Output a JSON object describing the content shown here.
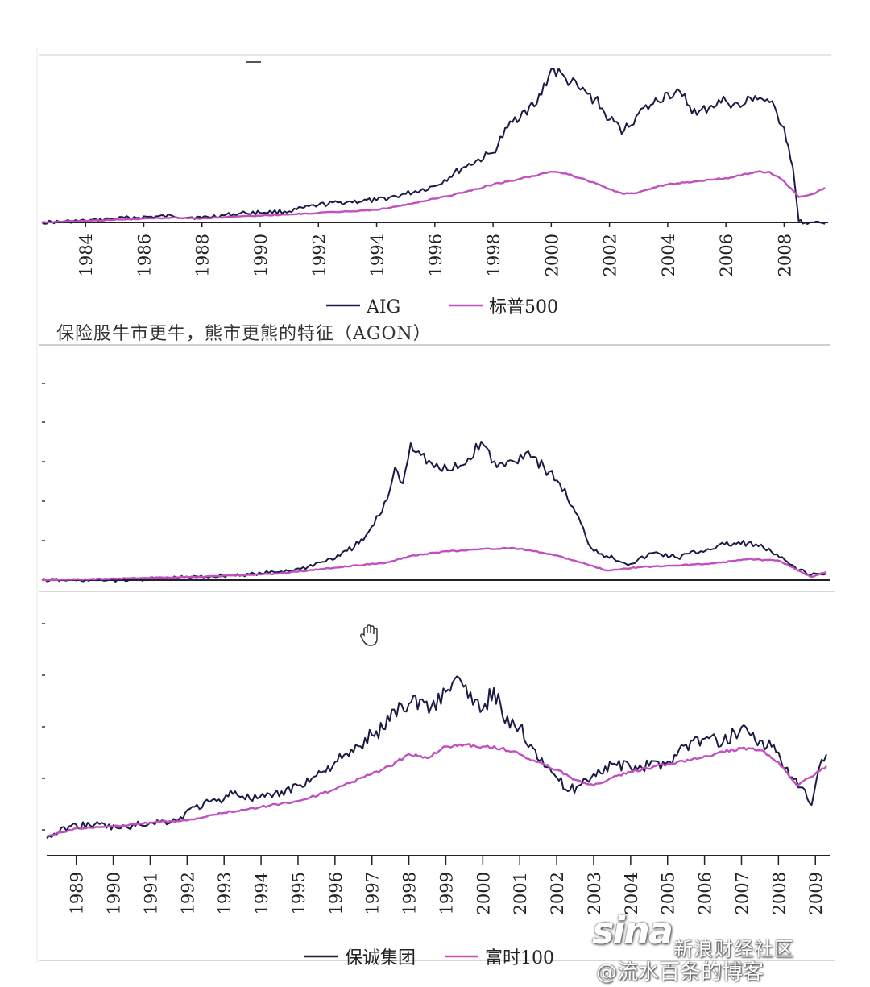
{
  "caption": "保险股牛市更牛，熊市更熊的特征（AGON）",
  "watermark": {
    "brand": "sina",
    "site": "新浪财经社区",
    "author": "@流水百条的博客"
  },
  "colors": {
    "company": "#1b1b45",
    "index": "#c050c0",
    "axis": "#222222",
    "separator": "#cfcfcf"
  },
  "chart_data": [
    {
      "type": "line",
      "title": "",
      "x_ticks": [
        "1984",
        "1986",
        "1988",
        "1990",
        "1992",
        "1994",
        "1996",
        "1998",
        "2000",
        "2002",
        "2004",
        "2006",
        "2008"
      ],
      "xlim": [
        1982.5,
        2009.4
      ],
      "ylim": [
        0,
        10
      ],
      "series": [
        {
          "name": "AIG",
          "x": [
            1982.5,
            1984,
            1985.5,
            1987,
            1988,
            1989.5,
            1991,
            1992,
            1993,
            1994,
            1995,
            1996,
            1997,
            1998,
            1998.5,
            1999,
            1999.5,
            2000,
            2000.5,
            2001,
            2001.5,
            2002,
            2002.5,
            2003,
            2003.5,
            2004,
            2004.5,
            2005,
            2005.5,
            2006,
            2006.5,
            2007,
            2007.5,
            2008,
            2008.3,
            2008.5,
            2008.8,
            2009,
            2009.4
          ],
          "y": [
            0.0,
            0.1,
            0.3,
            0.4,
            0.3,
            0.6,
            0.7,
            1.1,
            1.3,
            1.4,
            1.8,
            2.3,
            3.5,
            4.4,
            6.0,
            7.0,
            7.5,
            9.7,
            9.1,
            8.4,
            7.8,
            6.5,
            5.8,
            6.9,
            7.5,
            8.2,
            8.0,
            6.8,
            7.4,
            7.7,
            7.3,
            8.0,
            7.6,
            6.0,
            3.5,
            0.1,
            -0.1,
            0.0,
            -0.1
          ]
        },
        {
          "name": "标普500",
          "x": [
            1982.5,
            1984,
            1985.5,
            1987,
            1988,
            1989.5,
            1991,
            1992,
            1993,
            1994,
            1995,
            1996,
            1997,
            1998,
            1999,
            2000,
            2000.5,
            2001,
            2001.5,
            2002,
            2002.5,
            2003,
            2003.5,
            2004,
            2005,
            2006,
            2007,
            2007.5,
            2008,
            2008.5,
            2009,
            2009.4
          ],
          "y": [
            0.0,
            0.1,
            0.2,
            0.3,
            0.25,
            0.4,
            0.5,
            0.6,
            0.7,
            0.8,
            1.1,
            1.5,
            1.9,
            2.4,
            2.8,
            3.2,
            3.1,
            2.8,
            2.5,
            2.1,
            1.8,
            1.9,
            2.2,
            2.4,
            2.6,
            2.8,
            3.2,
            3.2,
            2.6,
            1.6,
            1.8,
            2.2
          ]
        }
      ],
      "legend": [
        "AIG",
        "标普500"
      ],
      "legend_position": "bottom"
    },
    {
      "type": "line",
      "title": "",
      "x_ticks": [],
      "xlim": [
        0,
        100
      ],
      "ylim": [
        0,
        10
      ],
      "series": [
        {
          "name": "",
          "x": [
            0,
            10,
            20,
            28,
            33,
            38,
            41,
            43,
            44,
            45,
            46,
            47,
            48,
            50,
            52,
            54,
            56,
            58,
            60,
            62,
            64,
            66,
            68,
            70,
            72,
            75,
            78,
            81,
            84,
            87,
            90,
            92,
            94,
            96,
            98,
            100
          ],
          "y": [
            0.0,
            0.0,
            0.2,
            0.4,
            0.7,
            1.5,
            2.5,
            4.0,
            5.0,
            7.0,
            6.0,
            8.5,
            8.0,
            7.0,
            6.8,
            7.2,
            8.6,
            7.0,
            7.4,
            8.0,
            7.0,
            6.0,
            4.2,
            2.0,
            1.5,
            1.0,
            1.7,
            1.4,
            1.8,
            2.2,
            2.3,
            2.0,
            1.4,
            0.8,
            0.3,
            0.4
          ]
        },
        {
          "name": "",
          "x": [
            0,
            20,
            30,
            38,
            44,
            47,
            50,
            55,
            60,
            65,
            68,
            72,
            76,
            80,
            85,
            90,
            94,
            96,
            98,
            100
          ],
          "y": [
            0.0,
            0.2,
            0.4,
            0.8,
            1.1,
            1.5,
            1.7,
            1.9,
            2.0,
            1.6,
            1.2,
            0.6,
            0.8,
            0.9,
            1.0,
            1.3,
            1.2,
            0.7,
            0.2,
            0.5
          ]
        }
      ]
    },
    {
      "type": "line",
      "title": "",
      "x_ticks": [
        "1989",
        "1990",
        "1991",
        "1992",
        "1993",
        "1994",
        "1995",
        "1996",
        "1997",
        "1998",
        "1999",
        "2000",
        "2001",
        "2002",
        "2003",
        "2004",
        "2005",
        "2006",
        "2007",
        "2008",
        "2009"
      ],
      "xlim": [
        1988.2,
        2009.3
      ],
      "ylim": [
        0,
        10
      ],
      "series": [
        {
          "name": "保诚集团",
          "x": [
            1988.2,
            1988.8,
            1989.5,
            1990.2,
            1991,
            1991.7,
            1992.2,
            1992.8,
            1993.3,
            1993.7,
            1994.3,
            1995,
            1995.5,
            1996,
            1996.5,
            1997,
            1997.3,
            1997.6,
            1998,
            1998.3,
            1998.6,
            1999,
            1999.3,
            1999.6,
            2000,
            2000.3,
            2000.6,
            2001,
            2001.3,
            2001.6,
            2002,
            2002.3,
            2002.6,
            2003,
            2003.5,
            2004,
            2004.5,
            2005,
            2005.5,
            2006,
            2006.5,
            2007,
            2007.5,
            2008,
            2008.3,
            2008.6,
            2008.9,
            2009.1,
            2009.3
          ],
          "y": [
            0.9,
            1.5,
            1.6,
            1.4,
            1.7,
            1.8,
            2.5,
            2.8,
            3.3,
            2.9,
            3.0,
            3.6,
            4.1,
            4.8,
            5.3,
            6.2,
            6.5,
            7.5,
            7.8,
            8.0,
            7.6,
            8.4,
            9.2,
            8.1,
            7.5,
            8.6,
            6.8,
            6.6,
            5.7,
            5.0,
            4.0,
            3.3,
            3.6,
            4.2,
            4.7,
            4.5,
            4.6,
            4.8,
            5.7,
            6.0,
            5.8,
            6.6,
            5.9,
            5.3,
            4.0,
            3.5,
            2.6,
            4.5,
            5.2
          ]
        },
        {
          "name": "富时100",
          "x": [
            1988.2,
            1989,
            1990,
            1991,
            1992,
            1993,
            1994,
            1995,
            1996,
            1997,
            1997.5,
            1998,
            1998.5,
            1999,
            1999.5,
            2000,
            2000.5,
            2001,
            2001.5,
            2002,
            2002.5,
            2003,
            2003.5,
            2004,
            2005,
            2006,
            2007,
            2007.5,
            2008,
            2008.5,
            2009,
            2009.3
          ],
          "y": [
            1.0,
            1.4,
            1.5,
            1.7,
            1.8,
            2.2,
            2.5,
            2.8,
            3.4,
            4.2,
            4.6,
            5.2,
            5.0,
            5.6,
            5.7,
            5.6,
            5.5,
            5.2,
            4.8,
            4.4,
            3.9,
            3.6,
            4.0,
            4.3,
            4.7,
            5.1,
            5.5,
            5.4,
            4.8,
            3.6,
            4.2,
            4.6
          ]
        }
      ],
      "legend": [
        "保诚集团",
        "富时100"
      ],
      "legend_position": "bottom"
    }
  ]
}
